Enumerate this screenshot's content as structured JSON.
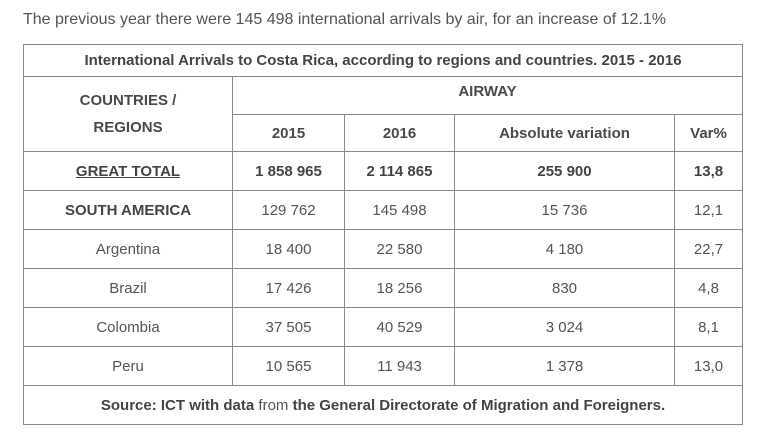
{
  "intro_text": "The previous year there were 145 498 international arrivals by air, for an increase of 12.1%",
  "table": {
    "title": "International Arrivals to Costa Rica, according to regions and countries. 2015 - 2016",
    "header_country_line1": "COUNTRIES /",
    "header_country_line2": "REGIONS",
    "header_group": "AIRWAY",
    "columns": [
      "2015",
      "2016",
      "Absolute variation",
      "Var%"
    ],
    "rows": [
      {
        "name": "GREAT TOTAL",
        "v2015": "1 858 965",
        "v2016": "2 114 865",
        "abs": "255 900",
        "pct": "13,8"
      },
      {
        "name": "SOUTH AMERICA",
        "v2015": "129 762",
        "v2016": "145 498",
        "abs": "15 736",
        "pct": "12,1"
      },
      {
        "name": "Argentina",
        "v2015": "18 400",
        "v2016": "22 580",
        "abs": "4 180",
        "pct": "22,7"
      },
      {
        "name": "Brazil",
        "v2015": "17 426",
        "v2016": "18 256",
        "abs": "830",
        "pct": "4,8"
      },
      {
        "name": "Colombia",
        "v2015": "37 505",
        "v2016": "40 529",
        "abs": "3 024",
        "pct": "8,1"
      },
      {
        "name": "Peru",
        "v2015": "10 565",
        "v2016": "11 943",
        "abs": "1 378",
        "pct": "13,0"
      }
    ],
    "source": {
      "part1": "Source: ICT with data",
      "part2": " from ",
      "part3": "the General Directorate of Migration and Foreigners."
    }
  }
}
